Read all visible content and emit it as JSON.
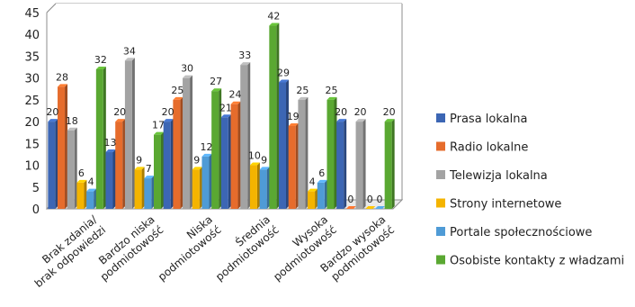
{
  "chart_data": {
    "type": "bar",
    "title": "",
    "xlabel": "",
    "ylabel": "",
    "ylim": [
      0,
      45
    ],
    "yticks": [
      0,
      5,
      10,
      15,
      20,
      25,
      30,
      35,
      40,
      45
    ],
    "grid": true,
    "legend_position": "right",
    "categories": [
      [
        "Brak zdania/",
        "brak odpowiedzi"
      ],
      [
        "Bardzo niska",
        "podmiotowość"
      ],
      [
        "Niska",
        "podmiotowość"
      ],
      [
        "Średnia",
        "podmiotowość"
      ],
      [
        "Wysoka",
        "podmiotowość"
      ],
      [
        "Bardzo wysoka",
        "podmiotowość"
      ]
    ],
    "series": [
      {
        "name": "Prasa lokalna",
        "color": "#3c66b4",
        "values": [
          20,
          13,
          20,
          21,
          29,
          20
        ]
      },
      {
        "name": "Radio lokalne",
        "color": "#e66c2c",
        "values": [
          28,
          20,
          25,
          24,
          19,
          0
        ]
      },
      {
        "name": "Telewizja lokalna",
        "color": "#a3a3a3",
        "values": [
          18,
          34,
          30,
          33,
          25,
          20
        ]
      },
      {
        "name": "Strony internetowe",
        "color": "#f4b400",
        "values": [
          6,
          9,
          9,
          10,
          4,
          0
        ]
      },
      {
        "name": "Portale społecznościowe",
        "color": "#4f9bd6",
        "values": [
          4,
          7,
          12,
          9,
          6,
          0
        ]
      },
      {
        "name": "Osobiste kontakty z władzami",
        "color": "#5aa832",
        "values": [
          32,
          17,
          27,
          42,
          25,
          20
        ]
      }
    ]
  }
}
